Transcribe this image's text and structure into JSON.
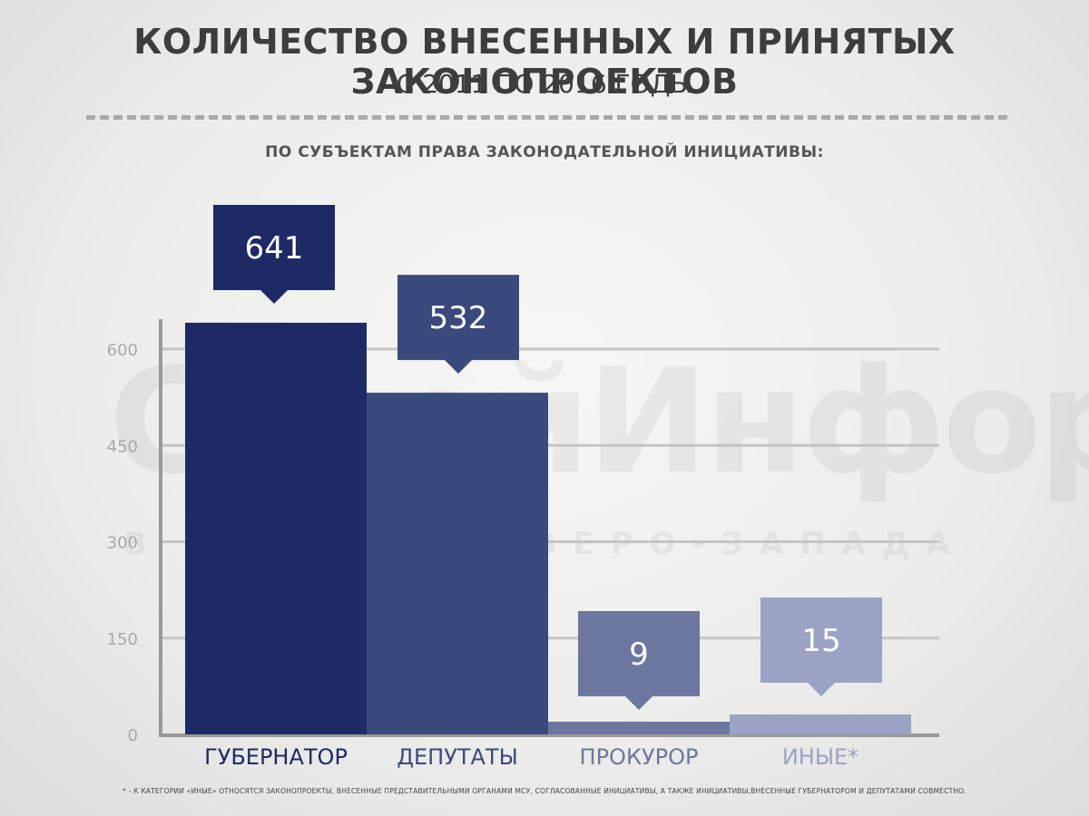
{
  "header": {
    "title": "КОЛИЧЕСТВО ВНЕСЕННЫХ И ПРИНЯТЫХ ЗАКОНОПРОЕКТОВ",
    "subtitle": "С 2011 ПО 2016 ГОДЫ",
    "section_label": "ПО СУБЪЕКТАМ ПРАВА ЗАКОНОДАТЕЛЬНОЙ ИНИЦИАТИВЫ:"
  },
  "watermark": {
    "text": "СтройИнформ",
    "subtext": "В ЕСТНИК СЕВЕРО-ЗАПАДА"
  },
  "footnote": "* - К КАТЕГОРИИ «ИНЫЕ» ОТНОСЯТСЯ ЗАКОНОПРОЕКТЫ, ВНЕСЕННЫЕ ПРЕДСТАВИТЕЛЬНЫМИ ОРГАНАМИ МСУ, СОГЛАСОВАННЫЕ ИНИЦИАТИВЫ, А ТАКЖЕ ИНИЦИАТИВЫ,ВНЕСЕННЫЕ ГУБЕРНАТОРОМ И ДЕПУТАТАМИ СОВМЕСТНО.",
  "colors": {
    "bar_1": "#1e2a66",
    "bar_2": "#3a4a7c",
    "bar_3": "#6c779f",
    "bar_4": "#9aa3c4",
    "gridline": "#c4c4c2",
    "axis": "#999999",
    "tick_text": "#a8a8a6"
  },
  "chart_data": {
    "type": "bar",
    "categories": [
      "ГУБЕРНАТОР",
      "ДЕПУТАТЫ",
      "ПРОКУРОР",
      "ИНЫЕ*"
    ],
    "values": [
      641,
      532,
      9,
      15
    ],
    "data_labels": [
      "641",
      "532",
      "9",
      "15"
    ],
    "yticks": [
      0,
      150,
      300,
      450,
      600
    ],
    "ylim": [
      0,
      630
    ],
    "grid": true,
    "legend": "none"
  }
}
